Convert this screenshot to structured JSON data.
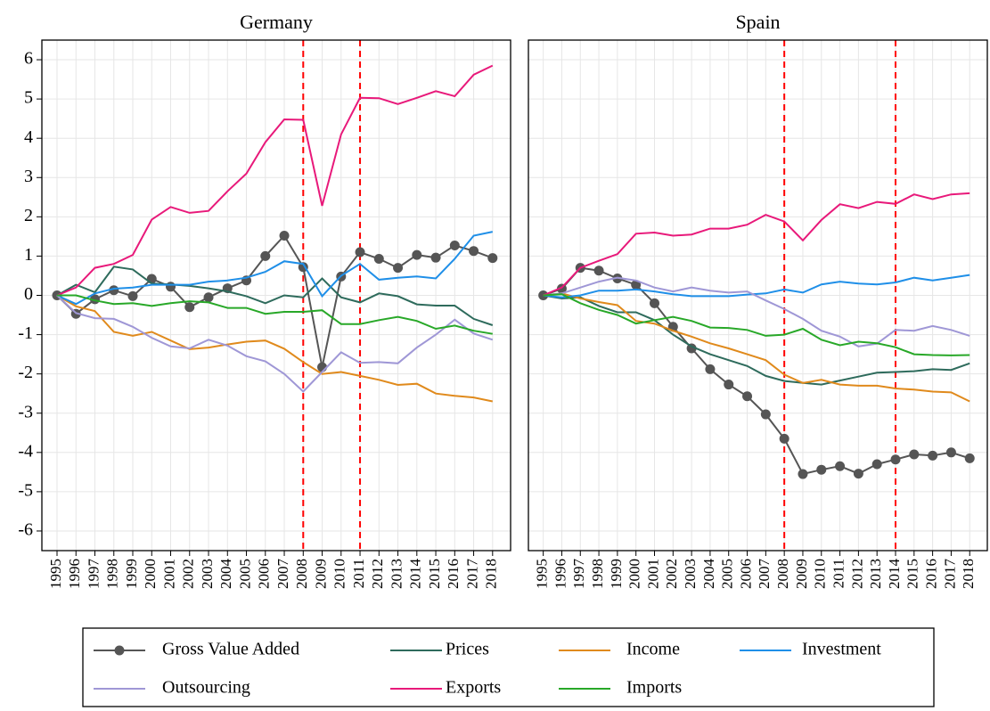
{
  "chart_data": [
    {
      "type": "line",
      "title": "Germany",
      "x": [
        1995,
        1996,
        1997,
        1998,
        1999,
        2000,
        2001,
        2002,
        2003,
        2004,
        2005,
        2006,
        2007,
        2008,
        2009,
        2010,
        2011,
        2012,
        2013,
        2014,
        2015,
        2016,
        2017,
        2018
      ],
      "xlim": [
        1994.2,
        2018.95
      ],
      "xticks": [
        1995,
        1996,
        1997,
        1998,
        1999,
        2000,
        2001,
        2002,
        2003,
        2004,
        2005,
        2006,
        2007,
        2008,
        2009,
        2010,
        2011,
        2012,
        2013,
        2014,
        2015,
        2016,
        2017,
        2018
      ],
      "ylim": [
        -6.5,
        6.5
      ],
      "yticks": [
        -6,
        -5,
        -4,
        -3,
        -2,
        -1,
        0,
        1,
        2,
        3,
        4,
        5,
        6
      ],
      "grid": true,
      "vlines": [
        2008,
        2011
      ],
      "vline_color": "#ff0000",
      "series": [
        {
          "name": "Gross Value Added",
          "color": "#555555",
          "marker": "circle",
          "values": [
            0,
            -0.47,
            -0.1,
            0.13,
            -0.02,
            0.42,
            0.22,
            -0.3,
            -0.05,
            0.18,
            0.38,
            1.0,
            1.52,
            0.72,
            -1.83,
            0.48,
            1.1,
            0.93,
            0.7,
            1.03,
            0.96,
            1.27,
            1.13,
            0.95
          ]
        },
        {
          "name": "Prices",
          "color": "#2e6b5c",
          "values": [
            0,
            0.27,
            0.08,
            0.73,
            0.66,
            0.3,
            0.28,
            0.24,
            0.18,
            0.1,
            -0.02,
            -0.2,
            0.0,
            -0.05,
            0.43,
            -0.05,
            -0.18,
            0.05,
            -0.02,
            -0.23,
            -0.26,
            -0.26,
            -0.6,
            -0.76
          ]
        },
        {
          "name": "Income",
          "color": "#e08a1c",
          "values": [
            0,
            -0.28,
            -0.4,
            -0.93,
            -1.03,
            -0.93,
            -1.15,
            -1.37,
            -1.33,
            -1.25,
            -1.18,
            -1.15,
            -1.36,
            -1.7,
            -2.0,
            -1.95,
            -2.05,
            -2.15,
            -2.28,
            -2.25,
            -2.5,
            -2.56,
            -2.6,
            -2.7
          ]
        },
        {
          "name": "Investment",
          "color": "#1f8fe8",
          "values": [
            0,
            -0.22,
            0.05,
            0.17,
            0.2,
            0.27,
            0.27,
            0.27,
            0.35,
            0.38,
            0.45,
            0.6,
            0.87,
            0.8,
            -0.02,
            0.5,
            0.8,
            0.4,
            0.45,
            0.48,
            0.43,
            0.93,
            1.52,
            1.62
          ]
        },
        {
          "name": "Outsourcing",
          "color": "#9f97d6",
          "values": [
            0,
            -0.45,
            -0.58,
            -0.6,
            -0.8,
            -1.08,
            -1.3,
            -1.35,
            -1.13,
            -1.28,
            -1.55,
            -1.68,
            -2.0,
            -2.45,
            -1.95,
            -1.45,
            -1.72,
            -1.7,
            -1.73,
            -1.33,
            -1.0,
            -0.62,
            -0.97,
            -1.13
          ]
        },
        {
          "name": "Exports",
          "color": "#e8197a",
          "values": [
            0,
            0.2,
            0.7,
            0.8,
            1.03,
            1.93,
            2.25,
            2.1,
            2.15,
            2.65,
            3.1,
            3.9,
            4.48,
            4.47,
            2.28,
            4.1,
            5.03,
            5.02,
            4.87,
            5.03,
            5.2,
            5.07,
            5.62,
            5.85
          ]
        },
        {
          "name": "Imports",
          "color": "#28a828",
          "values": [
            0,
            0.0,
            -0.13,
            -0.22,
            -0.2,
            -0.27,
            -0.2,
            -0.15,
            -0.18,
            -0.32,
            -0.32,
            -0.47,
            -0.42,
            -0.42,
            -0.38,
            -0.73,
            -0.73,
            -0.63,
            -0.55,
            -0.65,
            -0.85,
            -0.77,
            -0.9,
            -0.98
          ]
        }
      ]
    },
    {
      "type": "line",
      "title": "Spain",
      "x": [
        1995,
        1996,
        1997,
        1998,
        1999,
        2000,
        2001,
        2002,
        2003,
        2004,
        2005,
        2006,
        2007,
        2008,
        2009,
        2010,
        2011,
        2012,
        2013,
        2014,
        2015,
        2016,
        2017,
        2018
      ],
      "xlim": [
        1994.2,
        2018.95
      ],
      "xticks": [
        1995,
        1996,
        1997,
        1998,
        1999,
        2000,
        2001,
        2002,
        2003,
        2004,
        2005,
        2006,
        2007,
        2008,
        2009,
        2010,
        2011,
        2012,
        2013,
        2014,
        2015,
        2016,
        2017,
        2018
      ],
      "ylim": [
        -6.5,
        6.5
      ],
      "grid": true,
      "vlines": [
        2008,
        2014
      ],
      "vline_color": "#ff0000",
      "series": [
        {
          "color": "#555555",
          "marker": "circle",
          "values": [
            0,
            0.17,
            0.7,
            0.63,
            0.43,
            0.27,
            -0.2,
            -0.8,
            -1.35,
            -1.88,
            -2.27,
            -2.57,
            -3.03,
            -3.65,
            -4.55,
            -4.44,
            -4.35,
            -4.54,
            -4.3,
            -4.18,
            -4.05,
            -4.08,
            -4.0,
            -4.15
          ]
        },
        {
          "color": "#2e6b5c",
          "values": [
            0,
            -0.08,
            -0.05,
            -0.27,
            -0.43,
            -0.43,
            -0.63,
            -1.0,
            -1.3,
            -1.5,
            -1.65,
            -1.8,
            -2.05,
            -2.18,
            -2.23,
            -2.27,
            -2.17,
            -2.07,
            -1.97,
            -1.95,
            -1.93,
            -1.88,
            -1.9,
            -1.73
          ]
        },
        {
          "color": "#e08a1c",
          "values": [
            0,
            0.05,
            -0.08,
            -0.17,
            -0.25,
            -0.65,
            -0.72,
            -0.9,
            -1.05,
            -1.22,
            -1.35,
            -1.5,
            -1.65,
            -2.02,
            -2.23,
            -2.15,
            -2.27,
            -2.3,
            -2.3,
            -2.37,
            -2.4,
            -2.45,
            -2.47,
            -2.7
          ]
        },
        {
          "color": "#1f8fe8",
          "values": [
            0,
            -0.05,
            0.0,
            0.12,
            0.12,
            0.15,
            0.1,
            0.03,
            -0.02,
            -0.02,
            -0.02,
            0.02,
            0.05,
            0.15,
            0.07,
            0.28,
            0.35,
            0.3,
            0.28,
            0.33,
            0.45,
            0.38,
            0.45,
            0.52
          ]
        },
        {
          "color": "#9f97d6",
          "values": [
            0,
            0.05,
            0.2,
            0.35,
            0.45,
            0.38,
            0.2,
            0.1,
            0.2,
            0.12,
            0.07,
            0.1,
            -0.13,
            -0.35,
            -0.6,
            -0.9,
            -1.05,
            -1.3,
            -1.23,
            -0.88,
            -0.9,
            -0.78,
            -0.88,
            -1.03
          ]
        },
        {
          "color": "#e8197a",
          "values": [
            0,
            0.2,
            0.7,
            0.88,
            1.05,
            1.57,
            1.6,
            1.52,
            1.55,
            1.7,
            1.7,
            1.8,
            2.05,
            1.88,
            1.4,
            1.92,
            2.32,
            2.22,
            2.38,
            2.33,
            2.57,
            2.45,
            2.57,
            2.6
          ]
        },
        {
          "color": "#28a828",
          "values": [
            0,
            0.03,
            -0.2,
            -0.37,
            -0.5,
            -0.72,
            -0.63,
            -0.55,
            -0.65,
            -0.82,
            -0.83,
            -0.88,
            -1.03,
            -1.0,
            -0.85,
            -1.13,
            -1.27,
            -1.18,
            -1.22,
            -1.32,
            -1.5,
            -1.52,
            -1.53,
            -1.52
          ]
        }
      ]
    }
  ]
}
